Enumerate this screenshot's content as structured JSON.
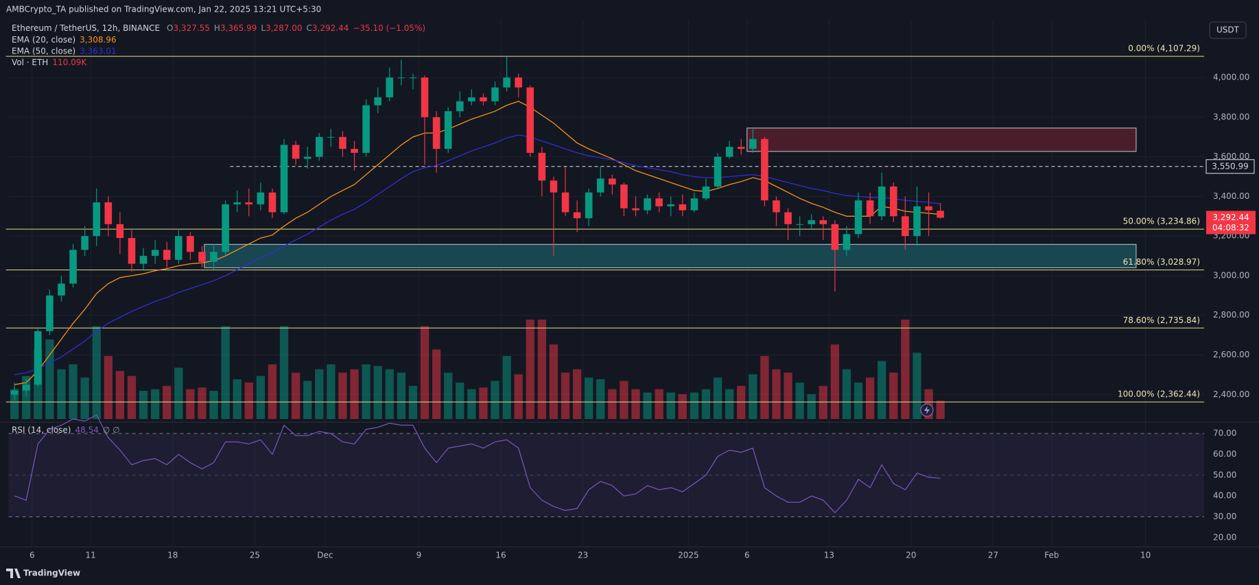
{
  "header": {
    "publisher": "AMBCrypto_TA published on TradingView.com, Jan 22, 2025 13:21 UTC+5:30",
    "symbol": "Ethereum / TetherUS, 12h, BINANCE",
    "ohlc": [
      {
        "key": "O",
        "value": "3,327.55"
      },
      {
        "key": "H",
        "value": "3,365.99"
      },
      {
        "key": "L",
        "value": "3,287.00"
      },
      {
        "key": "C",
        "value": "3,292.44"
      }
    ],
    "change": "−35.10 (−1.05%)",
    "currency_button": "USDT"
  },
  "footer": {
    "brand": "TradingView"
  },
  "chart_data": [
    {
      "type": "candlestick",
      "x": [
        0.5,
        1.5,
        2.5,
        3.5,
        4.5,
        5.5,
        6.5,
        7.5,
        8.5,
        9.5,
        10.5,
        11.5,
        12.5,
        13.5,
        14.5,
        15.5,
        16.5,
        17.5,
        18.5,
        19.5,
        20.5,
        21.5,
        22.5,
        23.5,
        24.5,
        25.5,
        26.5,
        27.5,
        28.5,
        29.5,
        30.5,
        31.5,
        32.5,
        33.5,
        34.5,
        35.5,
        36.5,
        37.5,
        38.5,
        39.5,
        40.5,
        41.5,
        42.5,
        43.5,
        44.5,
        45.5,
        46.5,
        47.5,
        48.5,
        49.5,
        50.5,
        51.5,
        52.5,
        53.5,
        54.5,
        55.5,
        56.5,
        57.5,
        58.5,
        59.5,
        60.5,
        61.5,
        62.5,
        63.5,
        64.5,
        65.5,
        66.5,
        67.5,
        68.5,
        69.5,
        70.5,
        71.5,
        72.5,
        73.5,
        74.5,
        75.5,
        76.5,
        77.5,
        78.5,
        79.5
      ],
      "open": [
        2400,
        2420,
        2450,
        2720,
        2900,
        2960,
        3130,
        3200,
        3370,
        3260,
        3190,
        3060,
        3100,
        3130,
        3080,
        3200,
        3120,
        3070,
        3120,
        3360,
        3370,
        3360,
        3420,
        3320,
        3660,
        3590,
        3600,
        3700,
        3700,
        3640,
        3620,
        3860,
        3900,
        4000,
        4000,
        4000,
        3800,
        3640,
        3830,
        3880,
        3900,
        3880,
        3950,
        4000,
        3950,
        3620,
        3480,
        3420,
        3320,
        3290,
        3420,
        3490,
        3460,
        3340,
        3330,
        3390,
        3350,
        3360,
        3330,
        3390,
        3450,
        3600,
        3650,
        3640,
        3690,
        3380,
        3320,
        3260,
        3260,
        3280,
        3260,
        3130,
        3210,
        3380,
        3300,
        3450,
        3300,
        3200,
        3350,
        3327.55
      ],
      "high": [
        2460,
        2480,
        2740,
        2930,
        3000,
        3160,
        3250,
        3440,
        3400,
        3320,
        3230,
        3140,
        3180,
        3170,
        3230,
        3220,
        3150,
        3160,
        3380,
        3430,
        3440,
        3470,
        3440,
        3690,
        3680,
        3650,
        3720,
        3740,
        3730,
        3680,
        3890,
        3950,
        4050,
        4090,
        4020,
        4010,
        3830,
        3850,
        3930,
        3940,
        3920,
        3980,
        4107,
        4020,
        3960,
        3650,
        3500,
        3550,
        3380,
        3440,
        3550,
        3510,
        3470,
        3400,
        3410,
        3420,
        3400,
        3410,
        3420,
        3490,
        3620,
        3680,
        3690,
        3740,
        3700,
        3400,
        3340,
        3300,
        3310,
        3300,
        3280,
        3250,
        3420,
        3420,
        3520,
        3470,
        3400,
        3450,
        3420,
        3365.99
      ],
      "low": [
        2370,
        2390,
        2440,
        2700,
        2870,
        2940,
        3100,
        3150,
        3200,
        3110,
        3020,
        3030,
        3060,
        3040,
        3060,
        3080,
        3040,
        3030,
        3100,
        3320,
        3300,
        3330,
        3290,
        3310,
        3560,
        3540,
        3580,
        3650,
        3600,
        3530,
        3600,
        3820,
        3880,
        3960,
        3940,
        3560,
        3520,
        3620,
        3800,
        3860,
        3860,
        3860,
        3930,
        3900,
        3600,
        3400,
        3100,
        3300,
        3220,
        3250,
        3400,
        3410,
        3300,
        3300,
        3310,
        3320,
        3300,
        3300,
        3320,
        3380,
        3440,
        3590,
        3610,
        3620,
        3350,
        3250,
        3180,
        3200,
        3230,
        3180,
        2920,
        3100,
        3190,
        3260,
        3280,
        3270,
        3130,
        3150,
        3200,
        3287.0
      ],
      "close": [
        2420,
        2450,
        2720,
        2900,
        2960,
        3130,
        3200,
        3370,
        3260,
        3190,
        3060,
        3100,
        3130,
        3080,
        3200,
        3120,
        3070,
        3120,
        3360,
        3370,
        3360,
        3420,
        3320,
        3660,
        3590,
        3600,
        3700,
        3700,
        3640,
        3620,
        3860,
        3900,
        4000,
        4000,
        4000,
        3800,
        3640,
        3830,
        3880,
        3900,
        3880,
        3950,
        4000,
        3950,
        3620,
        3480,
        3420,
        3320,
        3290,
        3420,
        3490,
        3460,
        3340,
        3330,
        3390,
        3350,
        3360,
        3330,
        3390,
        3450,
        3600,
        3650,
        3640,
        3690,
        3380,
        3320,
        3260,
        3260,
        3280,
        3260,
        3130,
        3210,
        3380,
        3300,
        3450,
        3300,
        3200,
        3350,
        3330,
        3292.44
      ],
      "up_color": "#089981",
      "down_color": "#f23645",
      "xlim": [
        0,
        102
      ],
      "ylim": [
        2266,
        4291
      ],
      "xticks": [
        {
          "value": 2,
          "label": "6"
        },
        {
          "value": 7,
          "label": "11"
        },
        {
          "value": 14,
          "label": "18"
        },
        {
          "value": 21,
          "label": "25"
        },
        {
          "value": 27,
          "label": "Dec"
        },
        {
          "value": 35,
          "label": "9"
        },
        {
          "value": 42,
          "label": "16"
        },
        {
          "value": 49,
          "label": "23"
        },
        {
          "value": 58,
          "label": "2025"
        },
        {
          "value": 63,
          "label": "6"
        },
        {
          "value": 70,
          "label": "13"
        },
        {
          "value": 77,
          "label": "20"
        },
        {
          "value": 84,
          "label": "27"
        },
        {
          "value": 89,
          "label": "Feb"
        },
        {
          "value": 97,
          "label": "10"
        }
      ],
      "yticks": [
        {
          "value": 2400,
          "label": "2,400.00"
        },
        {
          "value": 2600,
          "label": "2,600.00"
        },
        {
          "value": 2800,
          "label": "2,800.00"
        },
        {
          "value": 3000,
          "label": "3,000.00"
        },
        {
          "value": 3200,
          "label": "3,200.00"
        },
        {
          "value": 3400,
          "label": "3,400.00"
        },
        {
          "value": 3600,
          "label": "3,600.00"
        },
        {
          "value": 3800,
          "label": "3,800.00"
        },
        {
          "value": 4000,
          "label": "4,000.00"
        }
      ],
      "grid": true,
      "overlays": [
        {
          "name": "EMA (20, close)",
          "color": "#f7931a",
          "last_label": "3,308.96",
          "values": [
            2450,
            2460,
            2520,
            2600,
            2680,
            2760,
            2830,
            2910,
            2960,
            2990,
            3000,
            3010,
            3025,
            3035,
            3050,
            3060,
            3065,
            3075,
            3100,
            3130,
            3160,
            3190,
            3205,
            3250,
            3290,
            3320,
            3360,
            3400,
            3430,
            3460,
            3510,
            3560,
            3610,
            3660,
            3700,
            3720,
            3720,
            3740,
            3765,
            3790,
            3810,
            3830,
            3860,
            3880,
            3850,
            3810,
            3770,
            3720,
            3670,
            3640,
            3615,
            3590,
            3560,
            3530,
            3510,
            3490,
            3470,
            3450,
            3430,
            3425,
            3440,
            3460,
            3475,
            3495,
            3480,
            3450,
            3420,
            3390,
            3365,
            3345,
            3320,
            3300,
            3300,
            3300,
            3350,
            3340,
            3325,
            3320,
            3315,
            3308.96
          ]
        },
        {
          "name": "EMA (50, close)",
          "color": "#2f2fd8",
          "last_label": "3,363.01",
          "values": [
            2500,
            2510,
            2530,
            2560,
            2590,
            2630,
            2670,
            2720,
            2760,
            2790,
            2820,
            2845,
            2870,
            2890,
            2915,
            2935,
            2955,
            2975,
            3000,
            3030,
            3060,
            3090,
            3115,
            3150,
            3180,
            3210,
            3245,
            3280,
            3310,
            3335,
            3370,
            3410,
            3450,
            3490,
            3525,
            3545,
            3555,
            3580,
            3605,
            3630,
            3650,
            3670,
            3695,
            3710,
            3700,
            3680,
            3660,
            3640,
            3620,
            3605,
            3595,
            3585,
            3570,
            3555,
            3545,
            3535,
            3525,
            3510,
            3500,
            3495,
            3495,
            3500,
            3505,
            3510,
            3500,
            3485,
            3470,
            3455,
            3440,
            3430,
            3415,
            3405,
            3400,
            3395,
            3395,
            3388,
            3380,
            3375,
            3370,
            3363.01
          ]
        }
      ],
      "volume": {
        "name": "Vol · ETH",
        "last_label": "110.09K",
        "values": [
          180,
          260,
          420,
          480,
          300,
          330,
          250,
          560,
          380,
          290,
          260,
          170,
          180,
          200,
          310,
          180,
          190,
          170,
          560,
          240,
          220,
          260,
          330,
          560,
          280,
          230,
          300,
          330,
          280,
          300,
          330,
          320,
          300,
          280,
          200,
          560,
          420,
          280,
          220,
          180,
          190,
          230,
          380,
          270,
          600,
          600,
          450,
          280,
          300,
          250,
          240,
          180,
          230,
          180,
          160,
          180,
          160,
          150,
          160,
          180,
          250,
          180,
          200,
          270,
          380,
          300,
          280,
          220,
          150,
          200,
          450,
          300,
          220,
          250,
          350,
          280,
          600,
          400,
          180,
          110.09
        ]
      },
      "fib_levels": [
        {
          "value": 4107.29,
          "label": "0.00% (4,107.29)"
        },
        {
          "value": 3234.86,
          "label": "50.00% (3,234.86)"
        },
        {
          "value": 3028.97,
          "label": "61.80% (3,028.97)"
        },
        {
          "value": 2735.84,
          "label": "78.60% (2,735.84)"
        },
        {
          "value": 2362.44,
          "label": "100.00% (2,362.44)"
        }
      ],
      "zones": [
        {
          "x": [
            63.0,
            96.2
          ],
          "y": [
            3627,
            3745
          ],
          "color": "#4a1d2b"
        },
        {
          "x": [
            16.7,
            96.2
          ],
          "y": [
            3040,
            3158
          ],
          "color": "#184651"
        }
      ],
      "marked_price": {
        "value": 3550.99,
        "label": "3,550.99",
        "x0": 18.9
      },
      "last_price": {
        "value": 3292.44,
        "label": "3,292.44",
        "timer": "04:08:32",
        "color": "#f23645"
      }
    },
    {
      "type": "line",
      "name": "RSI (14, close)",
      "last_label": "48.54",
      "extra": "∅ ∅",
      "color": "#7e57c2",
      "x": [
        0.5,
        1.5,
        2.5,
        3.5,
        4.5,
        5.5,
        6.5,
        7.5,
        8.5,
        9.5,
        10.5,
        11.5,
        12.5,
        13.5,
        14.5,
        15.5,
        16.5,
        17.5,
        18.5,
        19.5,
        20.5,
        21.5,
        22.5,
        23.5,
        24.5,
        25.5,
        26.5,
        27.5,
        28.5,
        29.5,
        30.5,
        31.5,
        32.5,
        33.5,
        34.5,
        35.5,
        36.5,
        37.5,
        38.5,
        39.5,
        40.5,
        41.5,
        42.5,
        43.5,
        44.5,
        45.5,
        46.5,
        47.5,
        48.5,
        49.5,
        50.5,
        51.5,
        52.5,
        53.5,
        54.5,
        55.5,
        56.5,
        57.5,
        58.5,
        59.5,
        60.5,
        61.5,
        62.5,
        63.5,
        64.5,
        65.5,
        66.5,
        67.5,
        68.5,
        69.5,
        70.5,
        71.5,
        72.5,
        73.5,
        74.5,
        75.5,
        76.5,
        77.5,
        78.5,
        79.5
      ],
      "values": [
        40,
        38,
        65,
        72,
        74,
        77,
        76,
        79,
        68,
        62,
        55,
        57,
        58,
        55,
        60,
        56,
        53,
        56,
        66,
        66,
        65,
        67,
        60,
        74,
        69,
        69,
        71,
        70,
        66,
        65,
        72,
        73,
        75,
        74,
        74,
        63,
        56,
        63,
        64,
        65,
        63,
        66,
        67,
        63,
        44,
        38,
        35,
        33,
        34,
        43,
        47,
        45,
        40,
        41,
        45,
        43,
        44,
        42,
        46,
        50,
        59,
        62,
        61,
        63,
        44,
        40,
        37,
        37,
        40,
        38,
        32,
        38,
        48,
        44,
        55,
        46,
        43,
        51,
        49,
        48.54
      ],
      "xlim": [
        0,
        102
      ],
      "ylim": [
        16,
        75
      ],
      "yticks": [
        {
          "value": 20,
          "label": "20.00"
        },
        {
          "value": 30,
          "label": "30.00"
        },
        {
          "value": 40,
          "label": "40.00"
        },
        {
          "value": 50,
          "label": "50.00"
        },
        {
          "value": 60,
          "label": "60.00"
        },
        {
          "value": 70,
          "label": "70.00"
        }
      ],
      "band": [
        30,
        70
      ],
      "midline": 50
    }
  ]
}
